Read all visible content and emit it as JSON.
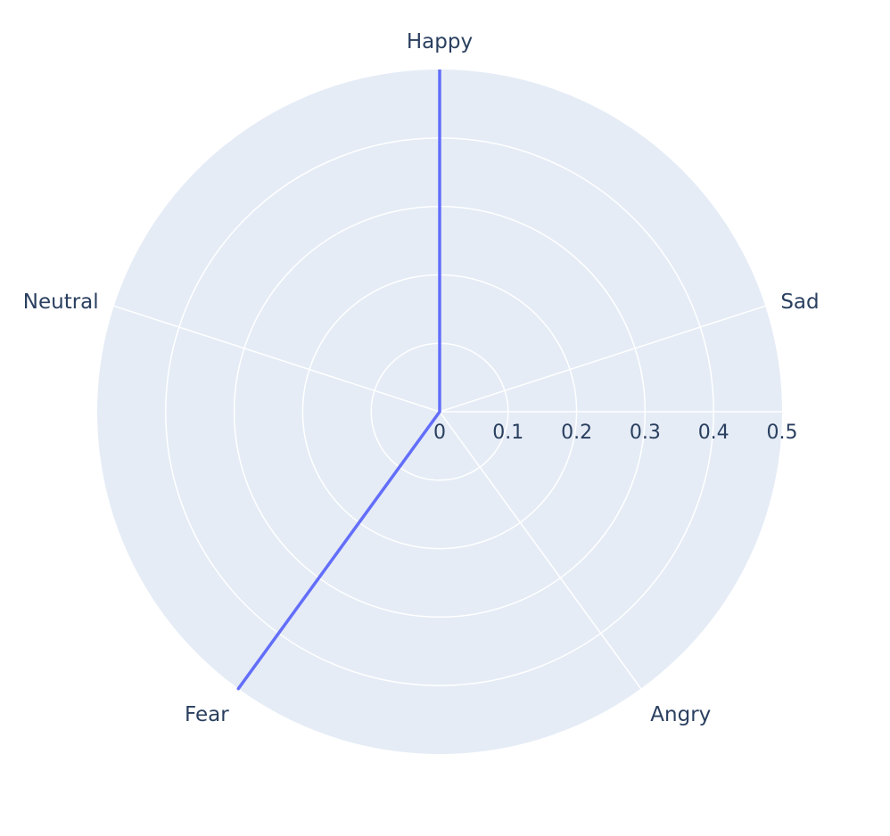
{
  "chart_data": {
    "type": "radar",
    "categories": [
      "Happy",
      "Sad",
      "Angry",
      "Fear",
      "Neutral"
    ],
    "series": [
      {
        "values": [
          0.5,
          0.0,
          0.0,
          0.5,
          0.0
        ],
        "color": "#636efa"
      }
    ],
    "radial_axis": {
      "range": [
        0,
        0.5
      ],
      "ticks": [
        0,
        0.1,
        0.2,
        0.3,
        0.4,
        0.5
      ],
      "tick_labels": [
        "0",
        "0.1",
        "0.2",
        "0.3",
        "0.4",
        "0.5"
      ]
    },
    "grid": true,
    "legend": false,
    "colors": {
      "polar_background": "#e5ecf6",
      "grid": "#ffffff",
      "text": "#2a3f5f",
      "trace": "#636efa"
    }
  }
}
